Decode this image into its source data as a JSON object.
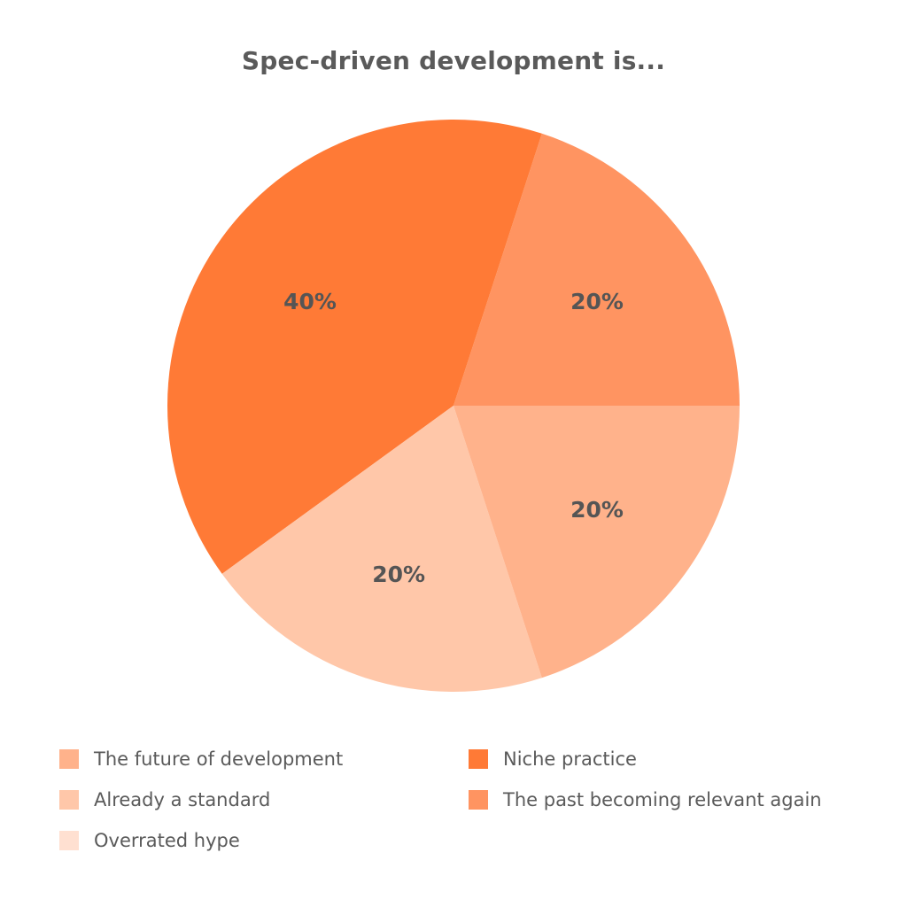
{
  "chart_data": {
    "type": "pie",
    "title": "Spec-driven development is...",
    "start_angle_deg": 0,
    "direction": "counterclockwise",
    "slices": [
      {
        "label": "The past becoming relevant again",
        "value": 20,
        "display": "20%",
        "color": "#ff9461"
      },
      {
        "label": "Niche practice",
        "value": 40,
        "display": "40%",
        "color": "#ff7a36"
      },
      {
        "label": "Already a standard",
        "value": 20,
        "display": "20%",
        "color": "#ffc7a9"
      },
      {
        "label": "The future of development",
        "value": 20,
        "display": "20%",
        "color": "#ffb28b"
      }
    ],
    "legend": {
      "position": "bottom",
      "entries": [
        {
          "label": "The future of development",
          "color": "#ffb28b"
        },
        {
          "label": "Niche practice",
          "color": "#ff7a36"
        },
        {
          "label": "Already a standard",
          "color": "#ffc7a9"
        },
        {
          "label": "The past becoming relevant again",
          "color": "#ff9461"
        },
        {
          "label": "Overrated hype",
          "color": "#ffe0d1"
        }
      ]
    },
    "label_color": "#555555"
  }
}
